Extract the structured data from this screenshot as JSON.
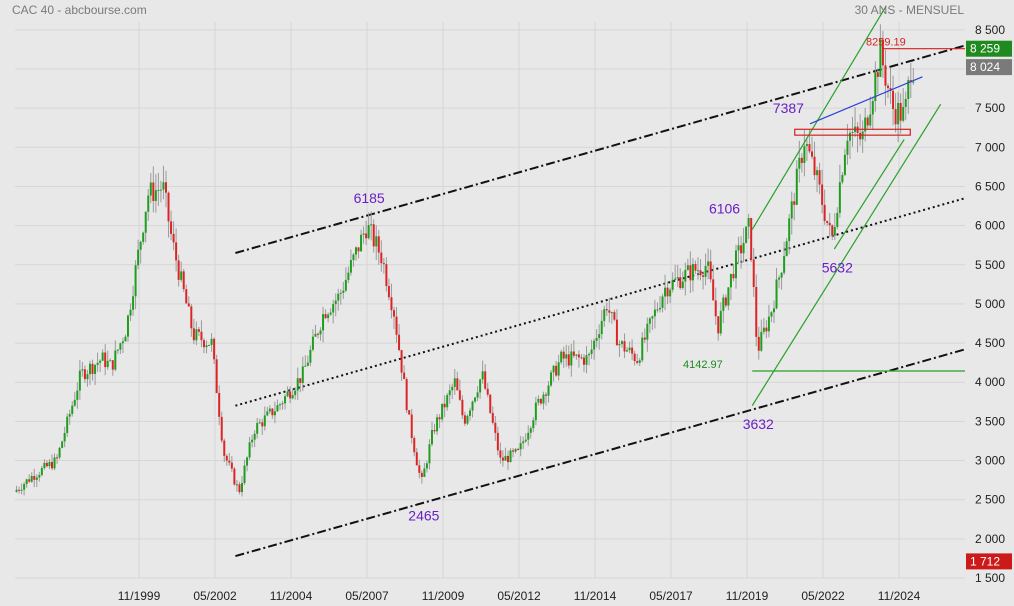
{
  "chart_data": {
    "type": "candlestick",
    "title": "CAC 40 - abcbourse.com",
    "subtitle": "30 ANS - MENSUEL",
    "y_ticks": [
      1500,
      2000,
      2500,
      3000,
      3500,
      4000,
      4500,
      5000,
      5500,
      6000,
      6500,
      7000,
      7500,
      8000,
      8500
    ],
    "y_tick_labels": [
      "1 500",
      "2 000",
      "2 500",
      "3 000",
      "3 500",
      "4 000",
      "4 500",
      "5 000",
      "5 500",
      "6 000",
      "6 500",
      "7 000",
      "7 500",
      "",
      "8 500"
    ],
    "ylim": [
      1500,
      8600
    ],
    "x_range": [
      1995.75,
      2027.0
    ],
    "x_ticks": [
      1999.83,
      2002.33,
      2004.83,
      2007.33,
      2009.83,
      2012.33,
      2014.83,
      2017.33,
      2019.83,
      2022.33,
      2024.83
    ],
    "x_tick_labels": [
      "11/1999",
      "05/2002",
      "11/2004",
      "05/2007",
      "11/2009",
      "05/2012",
      "11/2014",
      "05/2017",
      "11/2019",
      "05/2022",
      "11/2024"
    ],
    "up_color": "#1f9d1f",
    "down_color": "#dd2424",
    "key_points": [
      [
        1995.8,
        2600
      ],
      [
        1996.4,
        2800
      ],
      [
        1997.2,
        3000
      ],
      [
        1998.0,
        4100
      ],
      [
        1998.7,
        4300
      ],
      [
        1999.0,
        4200
      ],
      [
        1999.5,
        4700
      ],
      [
        2000.2,
        6400
      ],
      [
        2000.7,
        6500
      ],
      [
        2001.0,
        5800
      ],
      [
        2001.7,
        4600
      ],
      [
        2002.3,
        4500
      ],
      [
        2002.7,
        3100
      ],
      [
        2003.2,
        2600
      ],
      [
        2003.7,
        3400
      ],
      [
        2004.5,
        3700
      ],
      [
        2005.3,
        4100
      ],
      [
        2006.0,
        4900
      ],
      [
        2006.5,
        5100
      ],
      [
        2007.4,
        6000
      ],
      [
        2007.9,
        5600
      ],
      [
        2008.3,
        4900
      ],
      [
        2008.8,
        3500
      ],
      [
        2009.2,
        2700
      ],
      [
        2009.6,
        3400
      ],
      [
        2010.3,
        4000
      ],
      [
        2010.6,
        3500
      ],
      [
        2011.2,
        4100
      ],
      [
        2011.8,
        3000
      ],
      [
        2012.4,
        3100
      ],
      [
        2013.0,
        3700
      ],
      [
        2013.8,
        4300
      ],
      [
        2014.7,
        4300
      ],
      [
        2015.3,
        5000
      ],
      [
        2015.7,
        4500
      ],
      [
        2016.3,
        4300
      ],
      [
        2017.2,
        5200
      ],
      [
        2018.0,
        5400
      ],
      [
        2018.6,
        5500
      ],
      [
        2018.95,
        4700
      ],
      [
        2019.5,
        5500
      ],
      [
        2020.0,
        6000
      ],
      [
        2020.25,
        4400
      ],
      [
        2020.7,
        4900
      ],
      [
        2021.0,
        5400
      ],
      [
        2021.8,
        7100
      ],
      [
        2022.2,
        6600
      ],
      [
        2022.7,
        5800
      ],
      [
        2023.2,
        7200
      ],
      [
        2023.7,
        7100
      ],
      [
        2024.3,
        8200
      ],
      [
        2024.7,
        7500
      ],
      [
        2025.1,
        7400
      ],
      [
        2025.3,
        8024
      ]
    ],
    "annotations": [
      {
        "text": "6185",
        "x": 2007.4,
        "y": 6185,
        "pos": "above"
      },
      {
        "text": "2465",
        "x": 2009.2,
        "y": 2465,
        "pos": "below"
      },
      {
        "text": "6106",
        "x": 2019.8,
        "y": 6106,
        "pos": "left"
      },
      {
        "text": "7387",
        "x": 2021.9,
        "y": 7387,
        "pos": "left"
      },
      {
        "text": "5632",
        "x": 2022.8,
        "y": 5632,
        "pos": "below"
      },
      {
        "text": "3632",
        "x": 2020.2,
        "y": 3632,
        "pos": "below"
      }
    ],
    "level_labels": [
      {
        "text": "8259.19",
        "y": 8259.19,
        "color": "#d42020"
      },
      {
        "text": "4142.97",
        "y": 4142.97,
        "color": "#1c8a1c"
      }
    ],
    "price_badges": [
      {
        "text": "8 259",
        "y": 8259,
        "color": "#1f8a1f"
      },
      {
        "text": "8 024",
        "y": 8024,
        "color": "#7a7a7a"
      },
      {
        "text": "1 712",
        "y": 1712,
        "color": "#cc1a1a"
      }
    ],
    "channel_lines": [
      {
        "kind": "dashdot",
        "from": [
          2003.0,
          5650
        ],
        "to": [
          2027.0,
          8300
        ]
      },
      {
        "kind": "dotted",
        "from": [
          2003.0,
          3700
        ],
        "to": [
          2027.0,
          6350
        ]
      },
      {
        "kind": "dashdot",
        "from": [
          2003.0,
          1780
        ],
        "to": [
          2027.0,
          4420
        ]
      }
    ],
    "green_lines": [
      {
        "from": [
          2020.0,
          3700
        ],
        "to": [
          2026.2,
          7550
        ]
      },
      {
        "from": [
          2020.0,
          5950
        ],
        "to": [
          2024.4,
          8800
        ]
      },
      {
        "from": [
          2022.7,
          5700
        ],
        "to": [
          2025.0,
          7100
        ]
      },
      {
        "from": [
          2020.0,
          4142.97
        ],
        "to": [
          2027.0,
          4142.97
        ]
      }
    ],
    "blue_line": {
      "from": [
        2021.9,
        7300
      ],
      "to": [
        2025.6,
        7900
      ]
    },
    "red_boxes": [
      {
        "x0": 2021.4,
        "x1": 2025.2,
        "y0": 7155,
        "y1": 7230
      }
    ],
    "red_line": {
      "from": [
        2024.3,
        8259.19
      ],
      "to": [
        2027.0,
        8259.19
      ]
    }
  }
}
